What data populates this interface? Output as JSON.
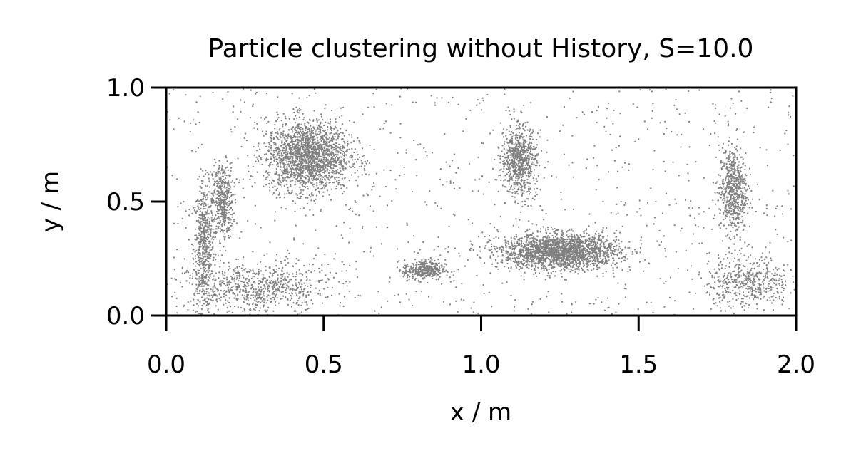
{
  "chart_data": {
    "type": "scatter",
    "title": "Particle clustering without History, S=10.0",
    "xlabel": "x / m",
    "ylabel": "y / m",
    "xlim": [
      0.0,
      2.0
    ],
    "ylim": [
      0.0,
      1.0
    ],
    "xticks": [
      "0.0",
      "0.5",
      "1.0",
      "1.5",
      "2.0"
    ],
    "yticks": [
      "0.0",
      "0.5",
      "1.0"
    ],
    "grid": false,
    "legend": "none",
    "marker_color": "#808080",
    "clusters": [
      {
        "name": "left-wall-band",
        "center": [
          0.12,
          0.3
        ],
        "spread": [
          0.03,
          0.25
        ],
        "share": 0.07
      },
      {
        "name": "left-diagonal-filament",
        "center": [
          0.18,
          0.5
        ],
        "spread": [
          0.03,
          0.15
        ],
        "share": 0.05
      },
      {
        "name": "upper-left-vortex",
        "center": [
          0.45,
          0.7
        ],
        "spread": [
          0.12,
          0.14
        ],
        "share": 0.22
      },
      {
        "name": "lower-left-sheet",
        "center": [
          0.3,
          0.12
        ],
        "spread": [
          0.2,
          0.1
        ],
        "share": 0.08
      },
      {
        "name": "center-spike",
        "center": [
          1.12,
          0.68
        ],
        "spread": [
          0.05,
          0.14
        ],
        "share": 0.08
      },
      {
        "name": "center-lower-vortex",
        "center": [
          1.25,
          0.28
        ],
        "spread": [
          0.17,
          0.07
        ],
        "share": 0.24
      },
      {
        "name": "center-left-tail",
        "center": [
          0.82,
          0.2
        ],
        "spread": [
          0.06,
          0.04
        ],
        "share": 0.04
      },
      {
        "name": "right-filament",
        "center": [
          1.8,
          0.55
        ],
        "spread": [
          0.04,
          0.17
        ],
        "share": 0.07
      },
      {
        "name": "right-lower-sheet",
        "center": [
          1.85,
          0.15
        ],
        "spread": [
          0.12,
          0.1
        ],
        "share": 0.05
      },
      {
        "name": "background-scatter",
        "center": [
          1.0,
          0.5
        ],
        "spread": [
          1.0,
          0.5
        ],
        "share": 0.1
      }
    ]
  }
}
